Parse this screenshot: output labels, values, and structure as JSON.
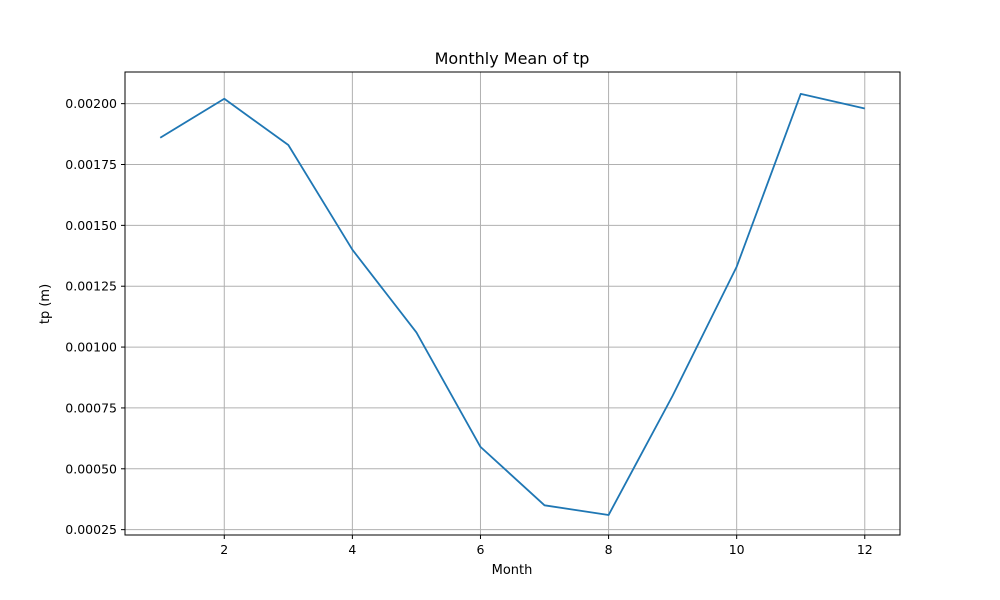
{
  "chart_data": {
    "type": "line",
    "title": "Monthly Mean of tp",
    "xlabel": "Month",
    "ylabel": "tp (m)",
    "grid": true,
    "xlim": [
      0.45,
      12.55
    ],
    "ylim": [
      0.000228,
      0.00213
    ],
    "x_ticks": [
      2,
      4,
      6,
      8,
      10,
      12
    ],
    "x_tick_labels": [
      "2",
      "4",
      "6",
      "8",
      "10",
      "12"
    ],
    "y_ticks": [
      0.00025,
      0.0005,
      0.00075,
      0.001,
      0.00125,
      0.0015,
      0.00175,
      0.002
    ],
    "y_tick_labels": [
      "0.00025",
      "0.00050",
      "0.00075",
      "0.00100",
      "0.00125",
      "0.00150",
      "0.00175",
      "0.00200"
    ],
    "series": [
      {
        "color": "#1f77b4",
        "x": [
          1,
          2,
          3,
          4,
          5,
          6,
          7,
          8,
          9,
          10,
          11,
          12
        ],
        "y": [
          0.00186,
          0.00202,
          0.00183,
          0.0014,
          0.00106,
          0.00059,
          0.00035,
          0.00031,
          0.0008,
          0.00133,
          0.00204,
          0.00198
        ]
      }
    ]
  }
}
